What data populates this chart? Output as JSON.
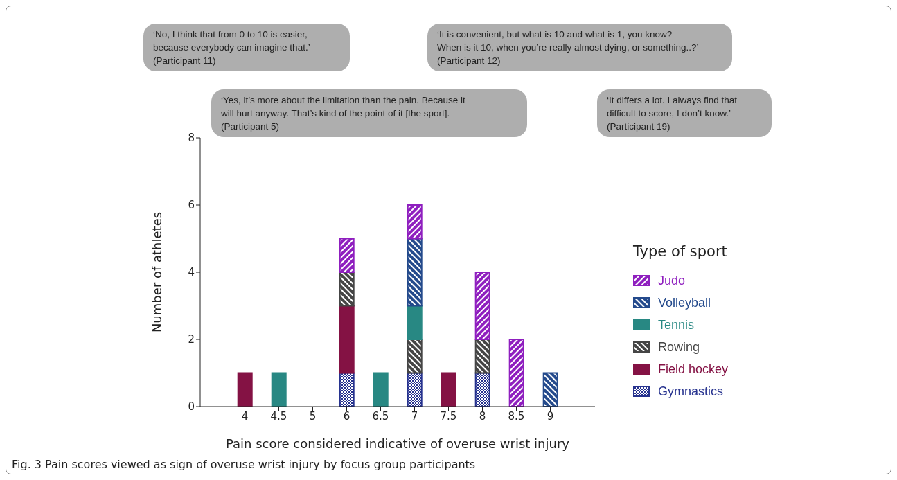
{
  "chart_data": {
    "type": "bar",
    "stacked": true,
    "xlabel": "Pain score considered indicative of overuse wrist injury",
    "ylabel": "Number of athletes",
    "legend_title": "Type of sport",
    "legend": "right",
    "grid": false,
    "categories": [
      "4",
      "4.5",
      "5",
      "6",
      "6.5",
      "7",
      "7.5",
      "8",
      "8.5",
      "9"
    ],
    "ylim": [
      0,
      8
    ],
    "yticks": [
      0,
      2,
      4,
      6,
      8
    ],
    "series": [
      {
        "name": "Gymnastics",
        "color": "#27338f",
        "values": [
          null,
          null,
          null,
          1,
          null,
          1,
          null,
          1,
          null,
          null
        ]
      },
      {
        "name": "Field hockey",
        "color": "#841244",
        "values": [
          1,
          null,
          null,
          2,
          null,
          null,
          1,
          null,
          null,
          null
        ]
      },
      {
        "name": "Rowing",
        "color": "#454545",
        "values": [
          null,
          null,
          null,
          1,
          null,
          1,
          null,
          1,
          null,
          null
        ]
      },
      {
        "name": "Tennis",
        "color": "#288883",
        "values": [
          null,
          1,
          null,
          null,
          1,
          1,
          null,
          null,
          null,
          null
        ]
      },
      {
        "name": "Volleyball",
        "color": "#244a8c",
        "values": [
          null,
          null,
          null,
          null,
          null,
          2,
          null,
          null,
          null,
          1
        ]
      },
      {
        "name": "Judo",
        "color": "#8f1fbf",
        "values": [
          null,
          null,
          null,
          1,
          null,
          1,
          null,
          2,
          2,
          null
        ]
      }
    ],
    "annotations": [
      "‘No, I think that from 0 to 10 is easier,\nbecause everybody can imagine that.’\n(Participant 11)",
      "‘It is convenient, but what is 10 and what is 1, you know?\nWhen is it 10, when you’re really almost dying, or something..?’\n(Participant 12)",
      "‘Yes, it’s more about the limitation than the pain. Because it\nwill hurt anyway. That’s kind of the point of it [the sport].\n(Participant 5)",
      "‘It differs a lot. I always find that\ndifficult to score, I don’t know.’\n(Participant 19)",
      "Fig. 3 Pain scores viewed as sign of overuse wrist injury by focus group participants"
    ]
  }
}
